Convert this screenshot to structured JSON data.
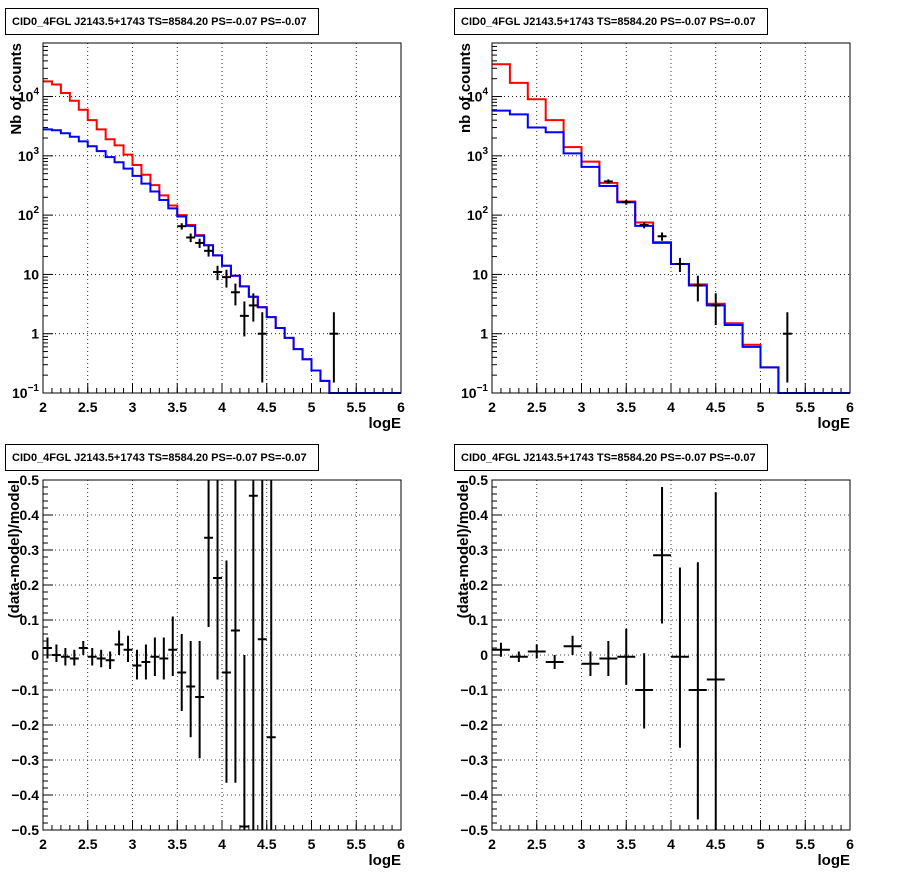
{
  "chart_data": [
    {
      "type": "line",
      "title": "CID0_4FGL J2143.5+1743 TS=8584.20 PS=-0.07 PS=-0.07",
      "xlabel": "logE",
      "ylabel": "Nb of counts",
      "log_y": true,
      "grid": true,
      "xlim": [
        2,
        6
      ],
      "ylim": [
        0.1,
        80000
      ],
      "x_ticks": [
        "2",
        "2.5",
        "3",
        "3.5",
        "4",
        "4.5",
        "5",
        "5.5",
        "6"
      ],
      "y_ticks": [
        {
          "value": 0.1,
          "base": "10",
          "exp": "−1"
        },
        {
          "value": 1,
          "label": "1"
        },
        {
          "value": 10,
          "label": "10"
        },
        {
          "value": 100,
          "base": "10",
          "exp": "2"
        },
        {
          "value": 1000,
          "base": "10",
          "exp": "3"
        },
        {
          "value": 10000,
          "base": "10",
          "exp": "4"
        }
      ],
      "bin_edges": [
        2.0,
        2.1,
        2.2,
        2.3,
        2.4,
        2.5,
        2.6,
        2.7,
        2.8,
        2.9,
        3.0,
        3.1,
        3.2,
        3.3,
        3.4,
        3.5,
        3.6,
        3.7,
        3.8,
        3.9,
        4.0,
        4.1,
        4.2,
        4.3,
        4.4,
        4.5,
        4.6,
        4.7,
        4.8,
        4.9,
        5.0,
        5.1,
        5.2,
        5.3,
        5.4,
        5.5,
        5.6,
        5.7,
        5.8,
        5.9,
        6.0
      ],
      "series": [
        {
          "color": "#ff0000",
          "values": [
            18000,
            16000,
            11500,
            8500,
            6000,
            4000,
            2800,
            1900,
            1500,
            1050,
            700,
            480,
            320,
            215,
            145,
            100,
            68,
            46,
            31,
            21,
            14,
            9.5,
            6.3,
            4.2,
            2.8,
            1.9,
            1.25,
            0.85,
            0.55,
            0.37,
            0.24,
            0.16,
            0.1,
            0.1,
            0.1,
            0.1,
            0.1,
            0.1,
            0.1,
            0.1
          ]
        },
        {
          "color": "#0000ff",
          "values": [
            2800,
            2700,
            2400,
            2100,
            1750,
            1450,
            1200,
            950,
            780,
            610,
            460,
            340,
            250,
            180,
            130,
            95,
            66,
            45,
            31,
            21,
            14,
            9.5,
            6.3,
            4.2,
            2.8,
            1.9,
            1.25,
            0.85,
            0.55,
            0.37,
            0.24,
            0.16,
            0.1,
            0.1,
            0.1,
            0.1,
            0.1,
            0.1,
            0.1,
            0.1
          ]
        }
      ],
      "points": [
        {
          "x": 3.55,
          "y": 65,
          "lo": 57,
          "hi": 73
        },
        {
          "x": 3.65,
          "y": 42,
          "lo": 35,
          "hi": 49
        },
        {
          "x": 3.75,
          "y": 34,
          "lo": 28,
          "hi": 40
        },
        {
          "x": 3.85,
          "y": 25,
          "lo": 20,
          "hi": 30
        },
        {
          "x": 3.95,
          "y": 11,
          "lo": 8,
          "hi": 14
        },
        {
          "x": 4.05,
          "y": 9,
          "lo": 6,
          "hi": 12
        },
        {
          "x": 4.15,
          "y": 5,
          "lo": 3,
          "hi": 7
        },
        {
          "x": 4.25,
          "y": 2,
          "lo": 0.9,
          "hi": 3.5
        },
        {
          "x": 4.35,
          "y": 3,
          "lo": 1.6,
          "hi": 4.8
        },
        {
          "x": 4.45,
          "y": 1,
          "lo": 0.15,
          "hi": 2.3
        },
        {
          "x": 5.25,
          "y": 1,
          "lo": 0.15,
          "hi": 2.3
        }
      ]
    },
    {
      "type": "line",
      "title": "CID0_4FGL J2143.5+1743 TS=8584.20 PS=-0.07 PS=-0.07",
      "xlabel": "logE",
      "ylabel": "nb of counts",
      "log_y": true,
      "grid": true,
      "xlim": [
        2,
        6
      ],
      "ylim": [
        0.1,
        80000
      ],
      "x_ticks": [
        "2",
        "2.5",
        "3",
        "3.5",
        "4",
        "4.5",
        "5",
        "5.5",
        "6"
      ],
      "y_ticks": [
        {
          "value": 0.1,
          "base": "10",
          "exp": "−1"
        },
        {
          "value": 1,
          "label": "1"
        },
        {
          "value": 10,
          "label": "10"
        },
        {
          "value": 100,
          "base": "10",
          "exp": "2"
        },
        {
          "value": 1000,
          "base": "10",
          "exp": "3"
        },
        {
          "value": 10000,
          "base": "10",
          "exp": "4"
        }
      ],
      "bin_edges": [
        2.0,
        2.2,
        2.4,
        2.6,
        2.8,
        3.0,
        3.2,
        3.4,
        3.6,
        3.8,
        4.0,
        4.2,
        4.4,
        4.6,
        4.8,
        5.0,
        5.2,
        5.4,
        5.6,
        5.8,
        6.0
      ],
      "series": [
        {
          "color": "#ff0000",
          "values": [
            35000,
            17000,
            9000,
            4000,
            1400,
            800,
            350,
            170,
            75,
            35,
            15,
            6.8,
            3.2,
            1.5,
            0.65,
            0.27,
            0.1,
            0.1,
            0.1,
            0.1
          ]
        },
        {
          "color": "#0000ff",
          "values": [
            5800,
            5000,
            3000,
            2500,
            1100,
            650,
            310,
            165,
            66,
            34,
            15,
            6.5,
            3.0,
            1.4,
            0.6,
            0.27,
            0.1,
            0.1,
            0.1,
            0.1
          ]
        }
      ],
      "points": [
        {
          "x": 3.3,
          "y": 370,
          "lo": 340,
          "hi": 400
        },
        {
          "x": 3.5,
          "y": 165,
          "lo": 150,
          "hi": 180
        },
        {
          "x": 3.7,
          "y": 68,
          "lo": 60,
          "hi": 76
        },
        {
          "x": 3.9,
          "y": 44,
          "lo": 37,
          "hi": 51
        },
        {
          "x": 4.1,
          "y": 15,
          "lo": 11,
          "hi": 19
        },
        {
          "x": 4.3,
          "y": 6.5,
          "lo": 3.5,
          "hi": 9.5
        },
        {
          "x": 4.5,
          "y": 3,
          "lo": 1.4,
          "hi": 4.8
        },
        {
          "x": 5.3,
          "y": 1,
          "lo": 0.15,
          "hi": 2.3
        }
      ]
    },
    {
      "type": "scatter",
      "title": "CID0_4FGL J2143.5+1743 TS=8584.20 PS=-0.07 PS=-0.07",
      "xlabel": "logE",
      "ylabel": "(data-model)/model",
      "log_y": false,
      "grid": true,
      "xlim": [
        2,
        6
      ],
      "ylim": [
        -0.5,
        0.5
      ],
      "x_ticks": [
        "2",
        "2.5",
        "3",
        "3.5",
        "4",
        "4.5",
        "5",
        "5.5",
        "6"
      ],
      "y_ticks": [
        {
          "value": -0.5,
          "label": "−0.5"
        },
        {
          "value": -0.4,
          "label": "−0.4"
        },
        {
          "value": -0.3,
          "label": "−0.3"
        },
        {
          "value": -0.2,
          "label": "−0.2"
        },
        {
          "value": -0.1,
          "label": "−0.1"
        },
        {
          "value": 0,
          "label": "0"
        },
        {
          "value": 0.1,
          "label": "0.1"
        },
        {
          "value": 0.2,
          "label": "0.2"
        },
        {
          "value": 0.3,
          "label": "0.3"
        },
        {
          "value": 0.4,
          "label": "0.4"
        },
        {
          "value": 0.5,
          "label": "0.5"
        }
      ],
      "points": [
        {
          "x": 2.05,
          "y": 0.02,
          "lo": -0.01,
          "hi": 0.05,
          "xerr": 0.05
        },
        {
          "x": 2.15,
          "y": 0.0,
          "lo": -0.02,
          "hi": 0.03,
          "xerr": 0.05
        },
        {
          "x": 2.25,
          "y": -0.005,
          "lo": -0.03,
          "hi": 0.02,
          "xerr": 0.05
        },
        {
          "x": 2.35,
          "y": -0.01,
          "lo": -0.03,
          "hi": 0.015,
          "xerr": 0.05
        },
        {
          "x": 2.45,
          "y": 0.02,
          "lo": 0.0,
          "hi": 0.04,
          "xerr": 0.05
        },
        {
          "x": 2.55,
          "y": -0.005,
          "lo": -0.03,
          "hi": 0.02,
          "xerr": 0.05
        },
        {
          "x": 2.65,
          "y": -0.01,
          "lo": -0.035,
          "hi": 0.015,
          "xerr": 0.05
        },
        {
          "x": 2.75,
          "y": -0.015,
          "lo": -0.04,
          "hi": 0.01,
          "xerr": 0.05
        },
        {
          "x": 2.85,
          "y": 0.03,
          "lo": 0.0,
          "hi": 0.07,
          "xerr": 0.05
        },
        {
          "x": 2.95,
          "y": 0.015,
          "lo": -0.02,
          "hi": 0.055,
          "xerr": 0.05
        },
        {
          "x": 3.05,
          "y": -0.03,
          "lo": -0.07,
          "hi": 0.015,
          "xerr": 0.05
        },
        {
          "x": 3.15,
          "y": -0.02,
          "lo": -0.07,
          "hi": 0.03,
          "xerr": 0.05
        },
        {
          "x": 3.25,
          "y": -0.005,
          "lo": -0.06,
          "hi": 0.05,
          "xerr": 0.05
        },
        {
          "x": 3.35,
          "y": -0.01,
          "lo": -0.07,
          "hi": 0.05,
          "xerr": 0.05
        },
        {
          "x": 3.45,
          "y": 0.015,
          "lo": -0.06,
          "hi": 0.11,
          "xerr": 0.05
        },
        {
          "x": 3.55,
          "y": -0.05,
          "lo": -0.16,
          "hi": 0.06,
          "xerr": 0.05
        },
        {
          "x": 3.65,
          "y": -0.09,
          "lo": -0.235,
          "hi": 0.04,
          "xerr": 0.05
        },
        {
          "x": 3.75,
          "y": -0.12,
          "lo": -0.295,
          "hi": 0.04,
          "xerr": 0.05
        },
        {
          "x": 3.85,
          "y": 0.335,
          "lo": 0.08,
          "hi": 0.5,
          "xerr": 0.05
        },
        {
          "x": 3.95,
          "y": 0.22,
          "lo": -0.07,
          "hi": 0.5,
          "xerr": 0.05
        },
        {
          "x": 4.05,
          "y": -0.05,
          "lo": -0.365,
          "hi": 0.27,
          "xerr": 0.05
        },
        {
          "x": 4.15,
          "y": 0.07,
          "lo": -0.365,
          "hi": 0.5,
          "xerr": 0.05
        },
        {
          "x": 4.25,
          "y": -0.49,
          "lo": -0.5,
          "hi": 0.0,
          "xerr": 0.05
        },
        {
          "x": 4.35,
          "y": 0.455,
          "lo": -0.5,
          "hi": 0.5,
          "xerr": 0.05
        },
        {
          "x": 4.45,
          "y": 0.045,
          "lo": -0.5,
          "hi": 0.5,
          "xerr": 0.05
        },
        {
          "x": 4.55,
          "y": -0.235,
          "lo": -0.5,
          "hi": 0.5,
          "xerr": 0.05
        }
      ]
    },
    {
      "type": "scatter",
      "title": "CID0_4FGL J2143.5+1743 TS=8584.20 PS=-0.07 PS=-0.07",
      "xlabel": "logE",
      "ylabel": "(data-model)/model",
      "log_y": false,
      "grid": true,
      "xlim": [
        2,
        6
      ],
      "ylim": [
        -0.5,
        0.5
      ],
      "x_ticks": [
        "2",
        "2.5",
        "3",
        "3.5",
        "4",
        "4.5",
        "5",
        "5.5",
        "6"
      ],
      "y_ticks": [
        {
          "value": -0.5,
          "label": "−0.5"
        },
        {
          "value": -0.4,
          "label": "−0.4"
        },
        {
          "value": -0.3,
          "label": "−0.3"
        },
        {
          "value": -0.2,
          "label": "−0.2"
        },
        {
          "value": -0.1,
          "label": "−0.1"
        },
        {
          "value": 0,
          "label": "0"
        },
        {
          "value": 0.1,
          "label": "0.1"
        },
        {
          "value": 0.2,
          "label": "0.2"
        },
        {
          "value": 0.3,
          "label": "0.3"
        },
        {
          "value": 0.4,
          "label": "0.4"
        },
        {
          "value": 0.5,
          "label": "0.5"
        }
      ],
      "points": [
        {
          "x": 2.1,
          "y": 0.015,
          "lo": -0.005,
          "hi": 0.035,
          "xerr": 0.1
        },
        {
          "x": 2.3,
          "y": -0.005,
          "lo": -0.02,
          "hi": 0.01,
          "xerr": 0.1
        },
        {
          "x": 2.5,
          "y": 0.01,
          "lo": -0.01,
          "hi": 0.03,
          "xerr": 0.1
        },
        {
          "x": 2.7,
          "y": -0.02,
          "lo": -0.04,
          "hi": 0.0,
          "xerr": 0.1
        },
        {
          "x": 2.9,
          "y": 0.025,
          "lo": 0.0,
          "hi": 0.055,
          "xerr": 0.1
        },
        {
          "x": 3.1,
          "y": -0.025,
          "lo": -0.06,
          "hi": 0.01,
          "xerr": 0.1
        },
        {
          "x": 3.3,
          "y": -0.01,
          "lo": -0.06,
          "hi": 0.04,
          "xerr": 0.1
        },
        {
          "x": 3.5,
          "y": -0.005,
          "lo": -0.085,
          "hi": 0.075,
          "xerr": 0.1
        },
        {
          "x": 3.7,
          "y": -0.1,
          "lo": -0.21,
          "hi": 0.005,
          "xerr": 0.1
        },
        {
          "x": 3.9,
          "y": 0.285,
          "lo": 0.09,
          "hi": 0.48,
          "xerr": 0.1
        },
        {
          "x": 4.1,
          "y": -0.005,
          "lo": -0.265,
          "hi": 0.25,
          "xerr": 0.1
        },
        {
          "x": 4.3,
          "y": -0.1,
          "lo": -0.47,
          "hi": 0.265,
          "xerr": 0.1
        },
        {
          "x": 4.5,
          "y": -0.07,
          "lo": -0.5,
          "hi": 0.465,
          "xerr": 0.1
        }
      ]
    }
  ]
}
